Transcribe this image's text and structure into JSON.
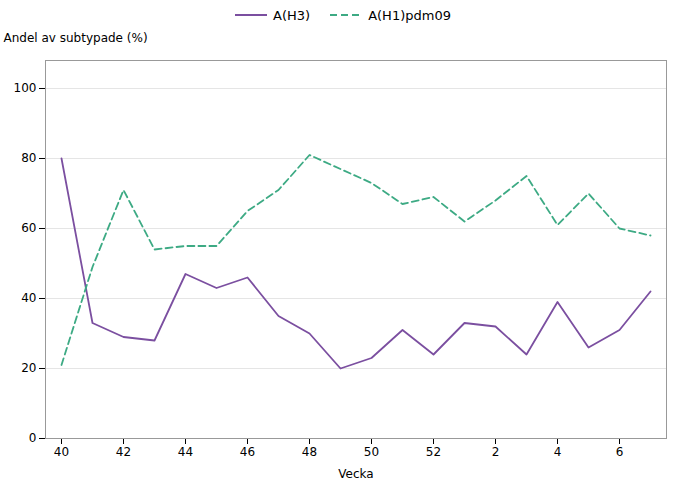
{
  "chart_data": {
    "type": "line",
    "categories": [
      "40",
      null,
      "42",
      null,
      "44",
      null,
      "46",
      null,
      "48",
      null,
      "50",
      null,
      "52",
      null,
      "2",
      null,
      "4",
      null,
      "6",
      null
    ],
    "series": [
      {
        "name": "A(H3)",
        "color": "#7B4FA0",
        "line_style": "solid",
        "values": [
          80,
          33,
          29,
          28,
          47,
          43,
          46,
          35,
          30,
          20,
          23,
          31,
          24,
          33,
          32,
          24,
          39,
          26,
          31,
          42
        ]
      },
      {
        "name": "A(H1)pdm09",
        "color": "#3DAA84",
        "line_style": "dashed",
        "values": [
          21,
          49,
          71,
          54,
          55,
          55,
          65,
          71,
          81,
          77,
          73,
          67,
          69,
          62,
          68,
          75,
          61,
          70,
          60,
          58
        ]
      }
    ],
    "xlabel": "Vecka",
    "ylabel": "Andel av subtypade (%)",
    "ylim": [
      0,
      108
    ],
    "yticks": [
      0,
      20,
      40,
      60,
      80,
      100
    ],
    "grid": true,
    "legend": "top"
  }
}
